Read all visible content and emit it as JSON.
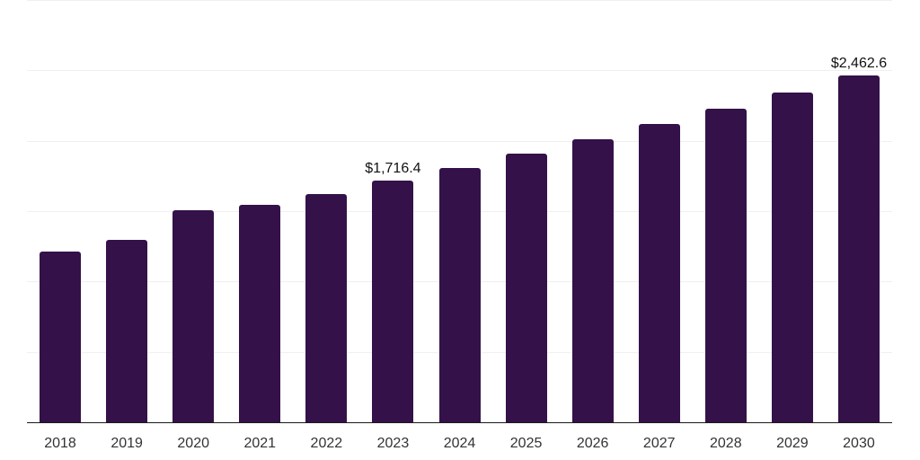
{
  "chart_data": {
    "type": "bar",
    "title": "",
    "xlabel": "",
    "ylabel": "",
    "categories": [
      "2018",
      "2019",
      "2020",
      "2021",
      "2022",
      "2023",
      "2024",
      "2025",
      "2026",
      "2027",
      "2028",
      "2029",
      "2030"
    ],
    "values": [
      1213,
      1296,
      1506,
      1545,
      1621,
      1716.4,
      1806,
      1909,
      2011,
      2119,
      2228,
      2343,
      2462.6
    ],
    "value_labels": [
      null,
      null,
      null,
      null,
      null,
      "$1,716.4",
      null,
      null,
      null,
      null,
      null,
      null,
      "$2,462.6"
    ],
    "ylim": [
      0,
      3000
    ],
    "grid_step": 500,
    "grid": "horizontal-only",
    "y_tick_labels_visible": false,
    "legend_position": "none",
    "colors": {
      "bar": "#341148",
      "axis_line": "#1a1a1a",
      "gridline": "#f0f0f0",
      "value_label": "#111111",
      "tick_label": "#333333",
      "background": "#ffffff"
    }
  }
}
